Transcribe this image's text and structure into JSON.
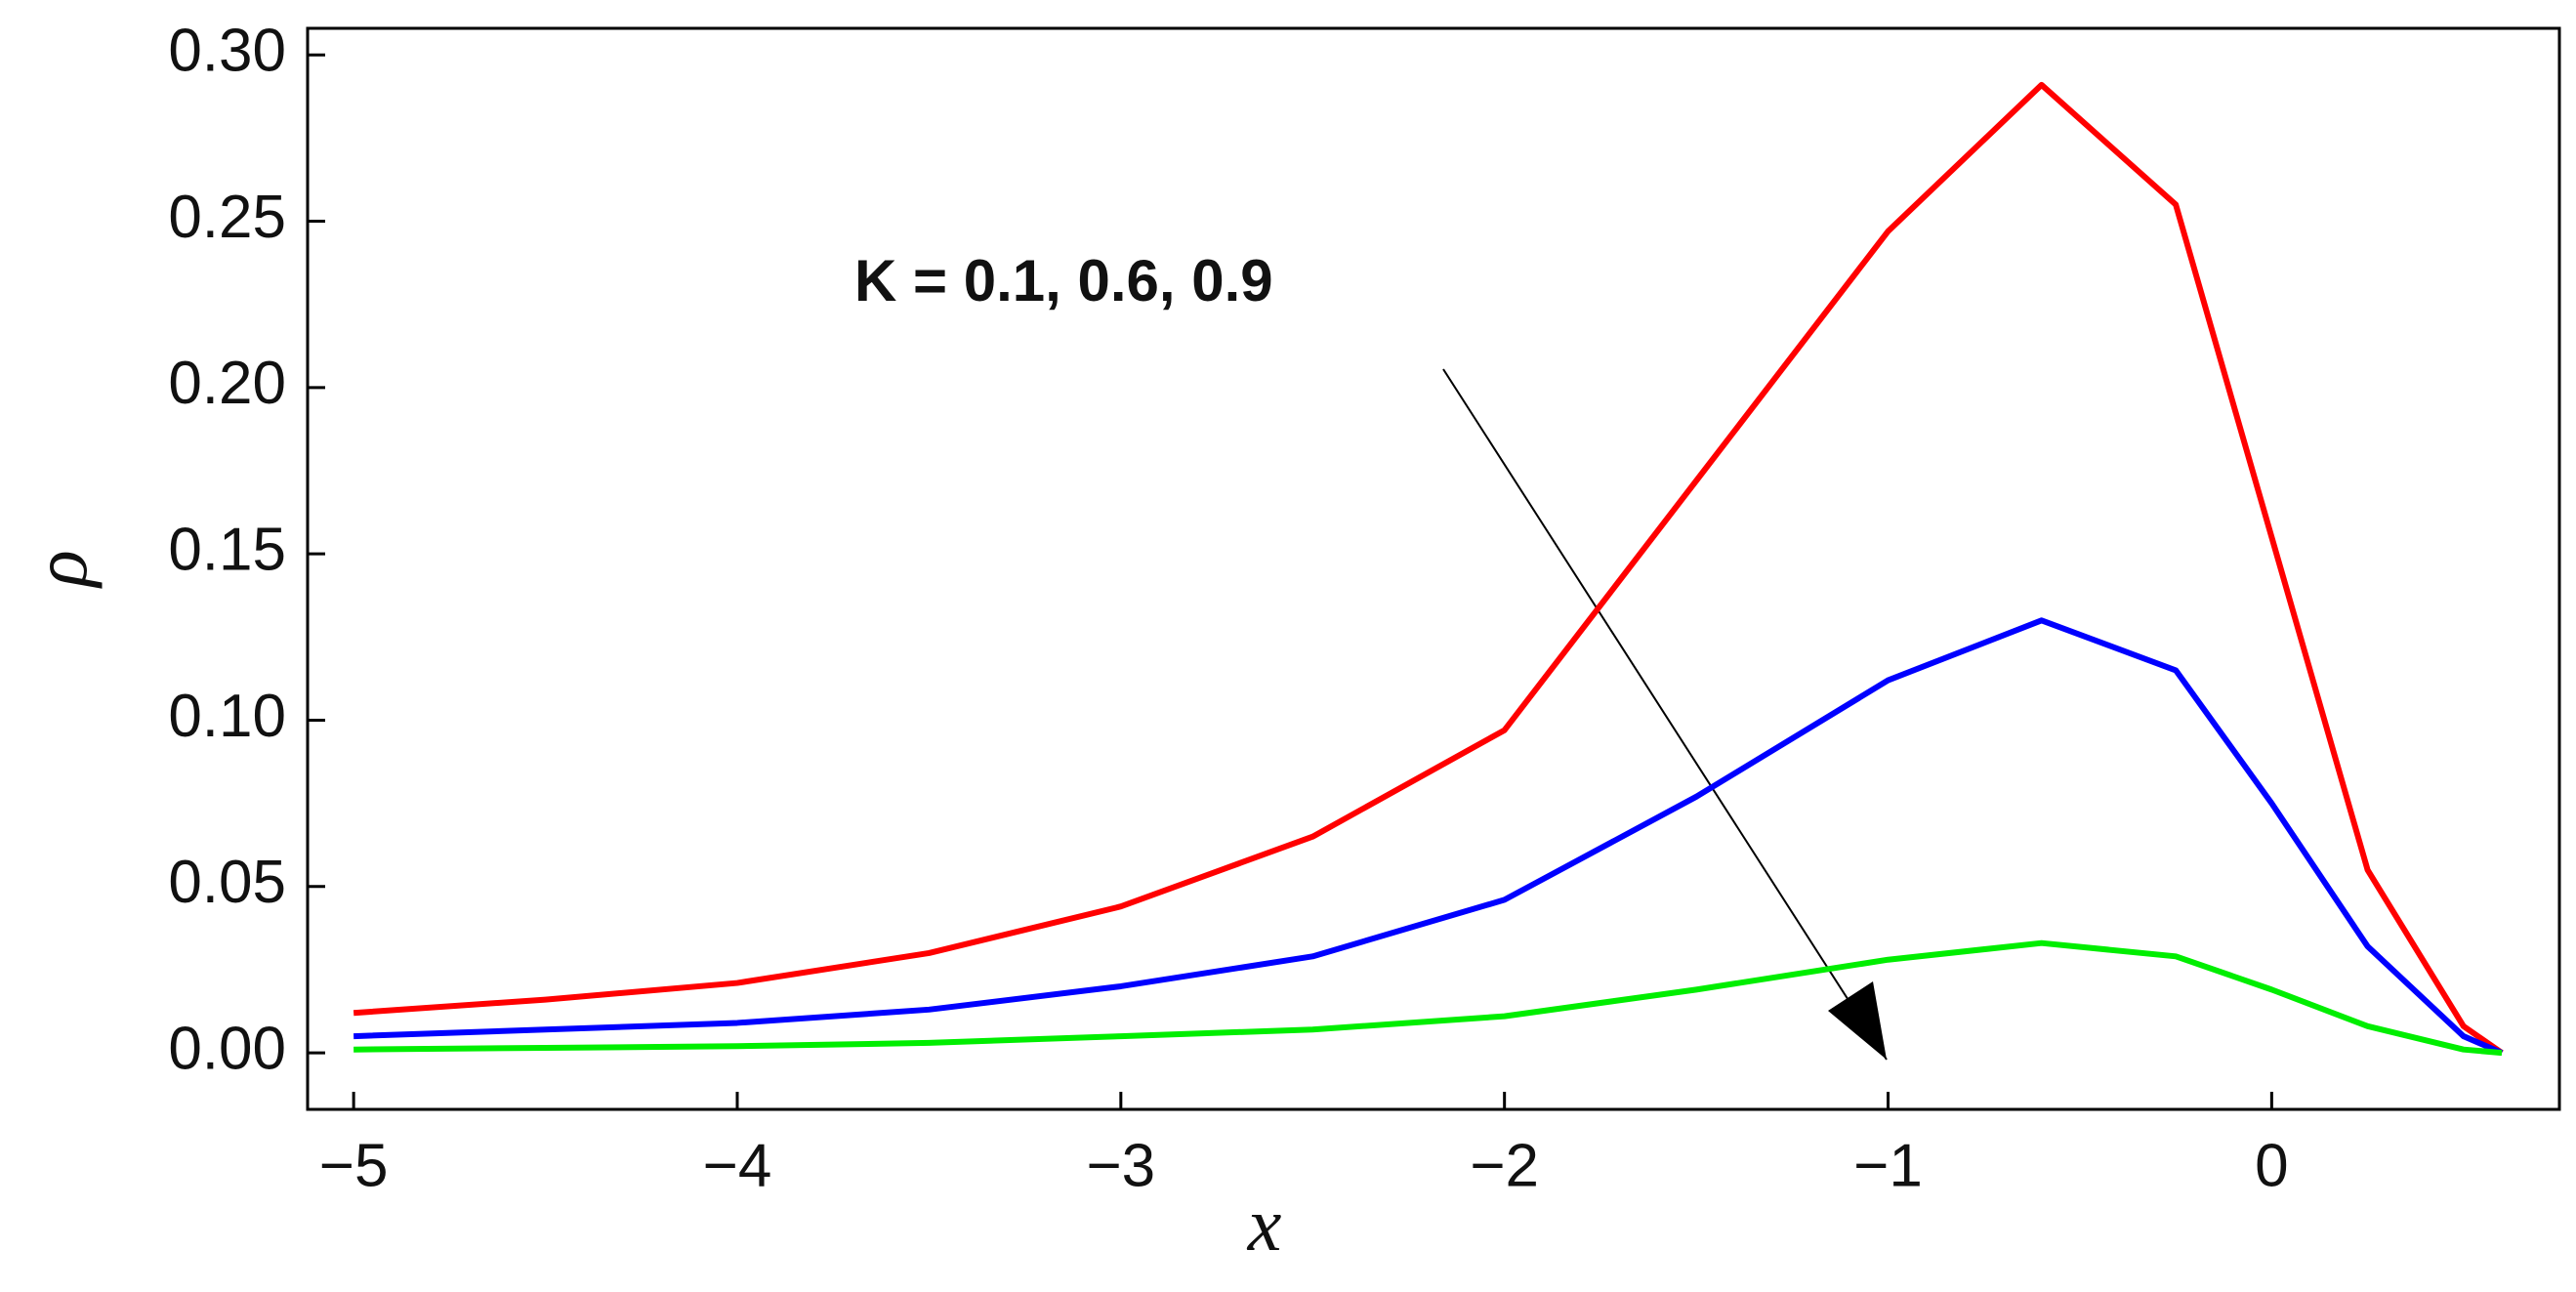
{
  "chart_data": {
    "type": "line",
    "x_label": "x",
    "y_label": "ρ",
    "annotation": "K = 0.1, 0.6, 0.9",
    "x": [
      -5,
      -4.5,
      -4,
      -3.5,
      -3,
      -2.5,
      -2,
      -1.5,
      -1,
      -0.6,
      -0.25,
      0,
      0.25,
      0.5,
      0.6
    ],
    "series": [
      {
        "color": "#ff0000",
        "values": [
          0.012,
          0.016,
          0.021,
          0.03,
          0.044,
          0.065,
          0.097,
          0.172,
          0.247,
          0.291,
          0.255,
          0.155,
          0.055,
          0.008,
          0
        ]
      },
      {
        "color": "#0000ff",
        "values": [
          0.005,
          0.007,
          0.009,
          0.013,
          0.02,
          0.029,
          0.046,
          0.077,
          0.112,
          0.13,
          0.115,
          0.075,
          0.032,
          0.005,
          0
        ]
      },
      {
        "color": "#00ee00",
        "values": [
          0.001,
          0.0015,
          0.002,
          0.003,
          0.005,
          0.007,
          0.011,
          0.019,
          0.028,
          0.033,
          0.029,
          0.019,
          0.008,
          0.001,
          0
        ]
      }
    ],
    "xlim": [
      -5.12,
      0.75
    ],
    "ylim": [
      -0.017,
      0.308
    ],
    "xticks": [
      {
        "value": -5,
        "label": "−5"
      },
      {
        "value": -4,
        "label": "−4"
      },
      {
        "value": -3,
        "label": "−3"
      },
      {
        "value": -2,
        "label": "−2"
      },
      {
        "value": -1,
        "label": "−1"
      },
      0
    ],
    "yticks": [
      {
        "value": 0,
        "label": "0.00"
      },
      {
        "value": 0.05,
        "label": "0.05"
      },
      {
        "value": 0.1,
        "label": "0.10"
      },
      {
        "value": 0.15,
        "label": "0.15"
      },
      {
        "value": 0.2,
        "label": "0.20"
      },
      {
        "value": 0.25,
        "label": "0.25"
      },
      {
        "value": 0.3,
        "label": "0.30"
      }
    ]
  }
}
